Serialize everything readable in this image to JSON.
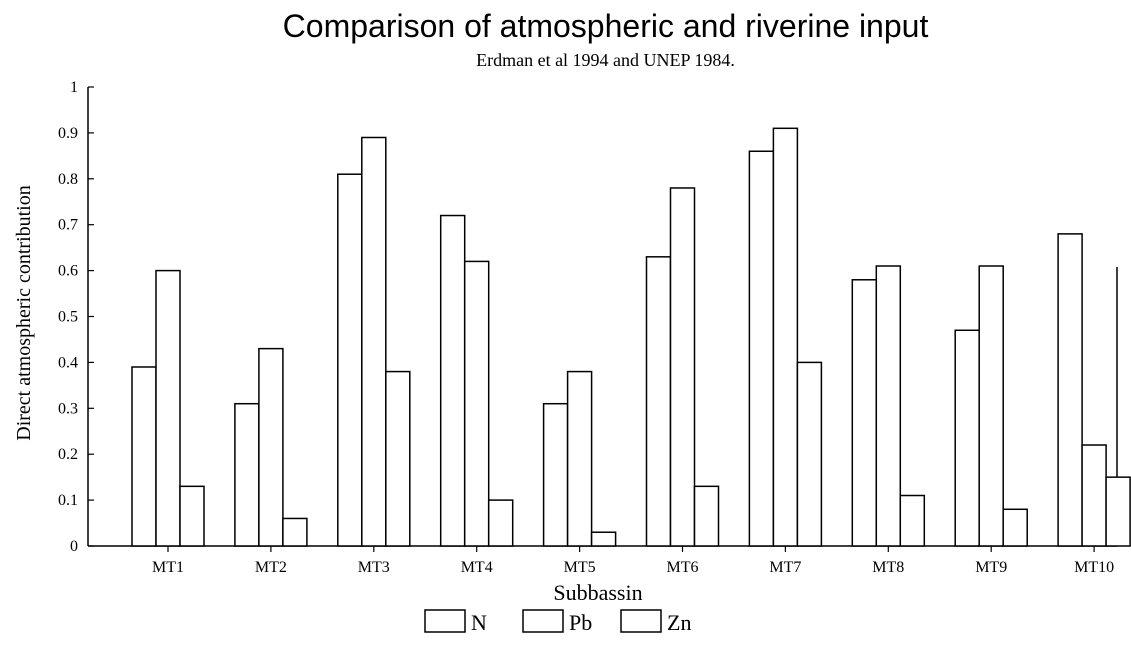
{
  "chart_data": {
    "type": "bar",
    "title": "Comparison of atmospheric and riverine input",
    "subtitle": "Erdman et al 1994 and UNEP 1984.",
    "xlabel": "Subbassin",
    "ylabel": "Direct atmospheric contribution",
    "ylim": [
      0,
      1
    ],
    "yticks": [
      "0",
      "0.1",
      "0.2",
      "0.3",
      "0.4",
      "0.5",
      "0.6",
      "0.7",
      "0.8",
      "0.9",
      "1"
    ],
    "categories": [
      "MT1",
      "MT2",
      "MT3",
      "MT4",
      "MT5",
      "MT6",
      "MT7",
      "MT8",
      "MT9",
      "MT10"
    ],
    "series": [
      {
        "name": "N",
        "values": [
          0.39,
          0.31,
          0.81,
          0.72,
          0.31,
          0.63,
          0.86,
          0.58,
          0.47,
          0.68
        ]
      },
      {
        "name": "Pb",
        "values": [
          0.6,
          0.43,
          0.89,
          0.62,
          0.38,
          0.78,
          0.91,
          0.61,
          0.61,
          0.22
        ]
      },
      {
        "name": "Zn",
        "values": [
          0.13,
          0.06,
          0.38,
          0.1,
          0.03,
          0.13,
          0.4,
          0.11,
          0.08,
          0.15
        ]
      }
    ],
    "grid": false,
    "legend_position": "bottom-center",
    "bar_fill": "#ffffff",
    "bar_stroke": "#000000"
  }
}
